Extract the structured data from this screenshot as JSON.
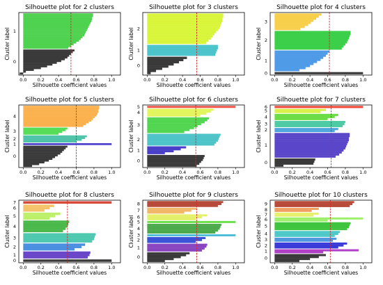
{
  "figure": {
    "xlabel": "Silhouette coefficient values",
    "ylabel": "Cluster label",
    "xticks": [
      0.0,
      0.2,
      0.4,
      0.6,
      0.8,
      1.0
    ],
    "xtick_labels": [
      "0.0",
      "0.2",
      "0.4",
      "0.6",
      "0.8",
      "1.0"
    ],
    "xlim": [
      -0.05,
      1.1
    ],
    "avg_line_color": "#d62728"
  },
  "chart_data": [
    {
      "type": "bar",
      "title": "Silhouette plot for 2 clusters",
      "average": 0.54,
      "clusters": [
        {
          "label": "0",
          "color": "#3a3a3a",
          "values": [
            0.58,
            0.56,
            0.54,
            0.52,
            0.5,
            0.47,
            0.43,
            0.38,
            0.33,
            0.27,
            0.2,
            0.12,
            0.03,
            -0.04
          ]
        },
        {
          "label": "1",
          "color": "#4fd24f",
          "values": [
            0.79,
            0.79,
            0.78,
            0.78,
            0.77,
            0.76,
            0.75,
            0.74,
            0.73,
            0.72,
            0.71,
            0.7,
            0.69,
            0.67,
            0.65,
            0.63,
            0.6,
            0.57,
            0.54,
            0.51
          ]
        }
      ]
    },
    {
      "type": "bar",
      "title": "Silhouette plot for 3 clusters",
      "average": 0.56,
      "clusters": [
        {
          "label": "0",
          "color": "#3a3a3a",
          "values": [
            0.45,
            0.41,
            0.36,
            0.3,
            0.24,
            0.17,
            0.1,
            0.04
          ]
        },
        {
          "label": "1",
          "color": "#4dc4cc",
          "values": [
            0.8,
            0.8,
            0.79,
            0.78,
            0.77
          ]
        },
        {
          "label": "2",
          "color": "#d9f53b",
          "values": [
            0.86,
            0.86,
            0.85,
            0.85,
            0.84,
            0.83,
            0.82,
            0.8,
            0.78,
            0.76,
            0.74,
            0.72,
            0.69,
            0.67
          ]
        }
      ]
    },
    {
      "type": "bar",
      "title": "Silhouette plot for 4 clusters",
      "average": 0.62,
      "clusters": [
        {
          "label": "0",
          "color": "#3a3a3a",
          "values": [
            1.0
          ]
        },
        {
          "label": "1",
          "color": "#4f9be8",
          "values": [
            0.62,
            0.6,
            0.58,
            0.55,
            0.52,
            0.48,
            0.44,
            0.4,
            0.35,
            0.28
          ]
        },
        {
          "label": "2",
          "color": "#3ccf4a",
          "values": [
            0.86,
            0.86,
            0.85,
            0.84,
            0.83,
            0.82,
            0.8,
            0.78,
            0.76
          ]
        },
        {
          "label": "3",
          "color": "#f7cf4a",
          "values": [
            0.53,
            0.5,
            0.47,
            0.44,
            0.41,
            0.38,
            0.34,
            0.29
          ]
        }
      ]
    },
    {
      "type": "bar",
      "title": "Silhouette plot for 5 clusters",
      "average": 0.6,
      "clusters": [
        {
          "label": "0",
          "color": "#3a3a3a",
          "values": [
            0.5,
            0.48,
            0.46,
            0.44,
            0.42,
            0.39,
            0.36,
            0.33,
            0.29,
            0.24,
            0.18,
            0.1
          ]
        },
        {
          "label": "1",
          "color": "#4a3fc8",
          "values": [
            1.0
          ]
        },
        {
          "label": "2",
          "color": "#4fc4a9",
          "values": [
            0.72,
            0.7,
            0.66,
            0.6
          ]
        },
        {
          "label": "3",
          "color": "#56dc56",
          "values": [
            0.5,
            0.48,
            0.44,
            0.4
          ]
        },
        {
          "label": "4",
          "color": "#fbb14e",
          "values": [
            0.86,
            0.86,
            0.85,
            0.85,
            0.84,
            0.83,
            0.81,
            0.79,
            0.77,
            0.74,
            0.71,
            0.68
          ]
        }
      ]
    },
    {
      "type": "bar",
      "title": "Silhouette plot for 6 clusters",
      "average": 0.55,
      "clusters": [
        {
          "label": "0",
          "color": "#3a3a3a",
          "values": [
            0.65,
            0.64,
            0.63,
            0.61,
            0.59,
            0.56
          ]
        },
        {
          "label": "1",
          "color": "#4a3fc8",
          "values": [
            0.44,
            0.38,
            0.3,
            0.2
          ]
        },
        {
          "label": "2",
          "color": "#4ec3c8",
          "values": [
            0.83,
            0.82,
            0.81,
            0.8,
            0.78,
            0.76
          ]
        },
        {
          "label": "3",
          "color": "#52d652",
          "values": [
            0.7,
            0.68,
            0.65,
            0.61,
            0.57,
            0.53,
            0.48,
            0.42
          ]
        },
        {
          "label": "4",
          "color": "#e2f55c",
          "values": [
            0.75,
            0.72,
            0.67,
            0.6
          ]
        },
        {
          "label": "5",
          "color": "#f0554a",
          "values": [
            1.0
          ]
        }
      ]
    },
    {
      "type": "bar",
      "title": "Silhouette plot for 7 clusters",
      "average": 0.64,
      "clusters": [
        {
          "label": "0",
          "color": "#3a3a3a",
          "values": [
            0.46,
            0.45,
            0.44,
            0.1
          ]
        },
        {
          "label": "1",
          "color": "#5a46c8",
          "values": [
            0.85,
            0.85,
            0.84,
            0.84,
            0.83,
            0.82,
            0.81,
            0.8,
            0.78,
            0.76,
            0.73,
            0.69
          ]
        },
        {
          "label": "2",
          "color": "#4fa6dc",
          "values": [
            0.72,
            0.68
          ]
        },
        {
          "label": "3",
          "color": "#4ecba5",
          "values": [
            0.8,
            0.79,
            0.77
          ]
        },
        {
          "label": "4",
          "color": "#6adc44",
          "values": [
            0.72,
            0.68,
            0.6
          ]
        },
        {
          "label": "5",
          "color": "#d8f04a",
          "values": [
            0.58,
            0.52
          ]
        },
        {
          "label": "6",
          "color": "#f04a3a",
          "values": [
            1.0
          ]
        }
      ]
    },
    {
      "type": "bar",
      "title": "Silhouette plot for 8 clusters",
      "average": 0.5,
      "clusters": [
        {
          "label": "0",
          "color": "#3a3a3a",
          "values": [
            1.0
          ]
        },
        {
          "label": "1",
          "color": "#6a46c8",
          "values": [
            0.76,
            0.75,
            0.73
          ]
        },
        {
          "label": "2",
          "color": "#4a8fe0",
          "values": [
            0.7,
            0.66,
            0.58
          ]
        },
        {
          "label": "3",
          "color": "#4fc8b0",
          "values": [
            0.82,
            0.81,
            0.8,
            0.78
          ]
        },
        {
          "label": "4",
          "color": "#4bb84b",
          "values": [
            0.52,
            0.51,
            0.5,
            0.48,
            0.45
          ]
        },
        {
          "label": "5",
          "color": "#bdf06a",
          "values": [
            0.42,
            0.36,
            0.3
          ]
        },
        {
          "label": "6",
          "color": "#f5c46a",
          "values": [
            0.35,
            0.3,
            0.24
          ]
        },
        {
          "label": "7",
          "color": "#d84a3a",
          "values": [
            1.0
          ]
        }
      ]
    },
    {
      "type": "bar",
      "title": "Silhouette plot for 9 clusters",
      "average": 0.56,
      "clusters": [
        {
          "label": "0",
          "color": "#3a3a3a",
          "values": [
            0.48,
            0.44,
            0.38,
            0.3,
            0.2
          ]
        },
        {
          "label": "1",
          "color": "#8a46c0",
          "values": [
            0.68,
            0.67,
            0.65,
            0.62
          ]
        },
        {
          "label": "2",
          "color": "#3a52d8",
          "values": [
            0.66,
            0.62,
            0.55
          ]
        },
        {
          "label": "3",
          "color": "#4fbcd8",
          "values": [
            1.0
          ]
        },
        {
          "label": "4",
          "color": "#4caa4c",
          "values": [
            0.84,
            0.83,
            0.82,
            0.8,
            0.77
          ]
        },
        {
          "label": "5",
          "color": "#6ae04a",
          "values": [
            1.0
          ]
        },
        {
          "label": "6",
          "color": "#e4f06a",
          "values": [
            0.68,
            0.62,
            0.55
          ]
        },
        {
          "label": "7",
          "color": "#f0b868",
          "values": [
            0.56,
            0.5,
            0.42
          ]
        },
        {
          "label": "8",
          "color": "#b84a3a",
          "values": [
            0.86,
            0.84,
            0.8
          ]
        }
      ]
    },
    {
      "type": "bar",
      "title": "Silhouette plot for 10 clusters",
      "average": 0.63,
      "clusters": [
        {
          "label": "0",
          "color": "#3a3a3a",
          "values": [
            0.58,
            0.5,
            0.4,
            0.28
          ]
        },
        {
          "label": "1",
          "color": "#b040c8",
          "values": [
            0.95,
            0.55
          ]
        },
        {
          "label": "2",
          "color": "#3a3ad8",
          "values": [
            0.82,
            0.78,
            0.72
          ]
        },
        {
          "label": "3",
          "color": "#4f98e0",
          "values": [
            0.7,
            0.66
          ]
        },
        {
          "label": "4",
          "color": "#4fc8c8",
          "values": [
            0.74,
            0.72,
            0.68
          ]
        },
        {
          "label": "5",
          "color": "#3ec43e",
          "values": [
            0.86,
            0.85,
            0.84,
            0.82
          ]
        },
        {
          "label": "6",
          "color": "#9ef06a",
          "values": [
            1.0,
            0.6
          ]
        },
        {
          "label": "7",
          "color": "#e6f06a",
          "values": [
            0.5,
            0.44
          ]
        },
        {
          "label": "8",
          "color": "#f0a060",
          "values": [
            0.5,
            0.42
          ]
        },
        {
          "label": "9",
          "color": "#b84a3a",
          "values": [
            0.9,
            0.88,
            0.85
          ]
        }
      ]
    }
  ]
}
